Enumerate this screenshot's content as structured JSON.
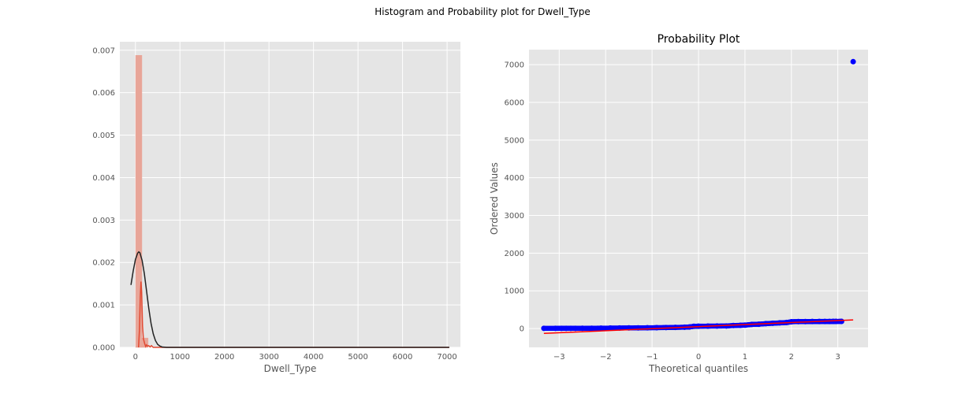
{
  "figure": {
    "suptitle": "Histogram and Probability plot for Dwell_Type",
    "colors": {
      "panel_bg": "#e5e5e5",
      "grid": "#ffffff",
      "hist_bar": "#e8a598",
      "hist_edge": "#e24a33",
      "kde_line": "#e24a33",
      "normal_fit_line": "#222222",
      "qq_points": "#0000ff",
      "qq_fit_line": "#ff0000",
      "tick_text": "#555555"
    }
  },
  "chart_data": [
    {
      "type": "bar",
      "subtype": "histogram-with-density",
      "title": "",
      "xlabel": "Dwell_Type",
      "ylabel": "",
      "xlim": [
        -350,
        7300
      ],
      "ylim": [
        0,
        0.0072
      ],
      "xticks": [
        0,
        1000,
        2000,
        3000,
        4000,
        5000,
        6000,
        7000
      ],
      "xtick_labels": [
        "0",
        "1000",
        "2000",
        "3000",
        "4000",
        "5000",
        "6000",
        "7000"
      ],
      "yticks": [
        0,
        0.001,
        0.002,
        0.003,
        0.004,
        0.005,
        0.006,
        0.007
      ],
      "ytick_labels": [
        "0.000",
        "0.001",
        "0.002",
        "0.003",
        "0.004",
        "0.005",
        "0.006",
        "0.007"
      ],
      "grid": true,
      "bins": [
        {
          "x0": 5,
          "x1": 145,
          "value": 0.00688
        },
        {
          "x0": 145,
          "x1": 285,
          "value": 0.00022
        }
      ],
      "kde": [
        [
          70,
          0
        ],
        [
          90,
          0.0004
        ],
        [
          110,
          0.0012
        ],
        [
          125,
          0.00155
        ],
        [
          140,
          0.0013
        ],
        [
          160,
          0.0005
        ],
        [
          180,
          0.0002
        ],
        [
          210,
          8e-05
        ],
        [
          230,
          2e-05
        ],
        [
          250,
          6e-05
        ],
        [
          270,
          3e-05
        ],
        [
          300,
          4e-05
        ],
        [
          330,
          1e-05
        ],
        [
          360,
          4e-05
        ],
        [
          400,
          0.0
        ],
        [
          700,
          0.0
        ],
        [
          1500,
          0.0
        ],
        [
          3000,
          0.0
        ],
        [
          5000,
          0.0
        ],
        [
          7050,
          0.0
        ]
      ],
      "normal_fit": [
        [
          -100,
          0.00147
        ],
        [
          -50,
          0.0018
        ],
        [
          0,
          0.00207
        ],
        [
          50,
          0.00222
        ],
        [
          75,
          0.00225
        ],
        [
          100,
          0.00223
        ],
        [
          150,
          0.00205
        ],
        [
          200,
          0.00174
        ],
        [
          250,
          0.00133
        ],
        [
          300,
          0.00092
        ],
        [
          350,
          0.00057
        ],
        [
          400,
          0.00032
        ],
        [
          450,
          0.00016
        ],
        [
          500,
          7e-05
        ],
        [
          550,
          3e-05
        ],
        [
          600,
          1e-05
        ],
        [
          700,
          0.0
        ],
        [
          1500,
          0.0
        ],
        [
          3000,
          0.0
        ],
        [
          5000,
          0.0
        ],
        [
          7050,
          0.0
        ]
      ]
    },
    {
      "type": "scatter",
      "subtype": "probability-plot",
      "title": "Probability Plot",
      "xlabel": "Theoretical quantiles",
      "ylabel": "Ordered Values",
      "xlim": [
        -3.65,
        3.65
      ],
      "ylim": [
        -500,
        7400
      ],
      "xticks": [
        -3,
        -2,
        -1,
        0,
        1,
        2,
        3
      ],
      "xtick_labels": [
        "−3",
        "−2",
        "−1",
        "0",
        "1",
        "2",
        "3"
      ],
      "yticks": [
        0,
        1000,
        2000,
        3000,
        4000,
        5000,
        6000,
        7000
      ],
      "ytick_labels": [
        "0",
        "1000",
        "2000",
        "3000",
        "4000",
        "5000",
        "6000",
        "7000"
      ],
      "grid": true,
      "points": [
        [
          -3.33,
          5
        ],
        [
          -3.08,
          5
        ],
        [
          -2.95,
          5
        ],
        [
          -2.85,
          5
        ],
        [
          -2.75,
          5
        ],
        [
          -2.65,
          5
        ],
        [
          -2.5,
          6
        ],
        [
          -2.3,
          8
        ],
        [
          -2.1,
          10
        ],
        [
          -1.9,
          12
        ],
        [
          -1.7,
          14
        ],
        [
          -1.5,
          16
        ],
        [
          -1.3,
          18
        ],
        [
          -1.1,
          20
        ],
        [
          -0.9,
          23
        ],
        [
          -0.7,
          26
        ],
        [
          -0.5,
          30
        ],
        [
          -0.3,
          35
        ],
        [
          -0.2,
          40
        ],
        [
          -0.1,
          60
        ],
        [
          0.0,
          62
        ],
        [
          0.2,
          64
        ],
        [
          0.4,
          66
        ],
        [
          0.6,
          68
        ],
        [
          0.75,
          80
        ],
        [
          0.9,
          85
        ],
        [
          1.0,
          90
        ],
        [
          1.15,
          110
        ],
        [
          1.3,
          115
        ],
        [
          1.45,
          130
        ],
        [
          1.6,
          140
        ],
        [
          1.75,
          150
        ],
        [
          1.9,
          160
        ],
        [
          2.0,
          180
        ],
        [
          2.15,
          185
        ],
        [
          2.3,
          185
        ],
        [
          2.45,
          186
        ],
        [
          2.6,
          187
        ],
        [
          2.72,
          188
        ],
        [
          2.82,
          188
        ],
        [
          2.9,
          189
        ],
        [
          2.96,
          189
        ],
        [
          3.08,
          190
        ],
        [
          3.33,
          7080
        ]
      ],
      "fit_line": [
        [
          -3.33,
          -130
        ],
        [
          3.33,
          230
        ]
      ]
    }
  ]
}
